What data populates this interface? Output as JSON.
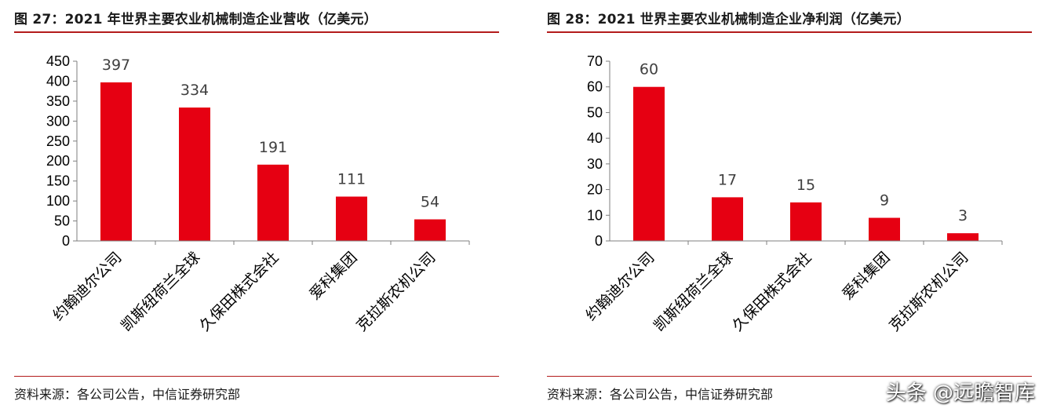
{
  "watermark": "头条 @远瞻智库",
  "chart_data": [
    {
      "type": "bar",
      "title": "图 27：2021 年世界主要农业机械制造企业营收（亿美元）",
      "source": "资料来源：各公司公告，中信证券研究部",
      "categories": [
        "约翰迪尔公司",
        "凯斯纽荷兰全球",
        "久保田株式会社",
        "爱科集团",
        "克拉斯农机公司"
      ],
      "values": [
        397,
        334,
        191,
        111,
        54
      ],
      "ylim": [
        0,
        450
      ],
      "yticks": [
        0,
        50,
        100,
        150,
        200,
        250,
        300,
        350,
        400,
        450
      ],
      "xlabel": "",
      "ylabel": "",
      "grid": false,
      "bar_color": "#e60012",
      "accent_color": "#b31b1b"
    },
    {
      "type": "bar",
      "title": "图 28：2021 世界主要农业机械制造企业净利润（亿美元）",
      "source": "资料来源：各公司公告，中信证券研究部",
      "categories": [
        "约翰迪尔公司",
        "凯斯纽荷兰全球",
        "久保田株式会社",
        "爱科集团",
        "克拉斯农机公司"
      ],
      "values": [
        60,
        17,
        15,
        9,
        3
      ],
      "ylim": [
        0,
        70
      ],
      "yticks": [
        0,
        10,
        20,
        30,
        40,
        50,
        60,
        70
      ],
      "xlabel": "",
      "ylabel": "",
      "grid": false,
      "bar_color": "#e60012",
      "accent_color": "#b31b1b"
    }
  ]
}
